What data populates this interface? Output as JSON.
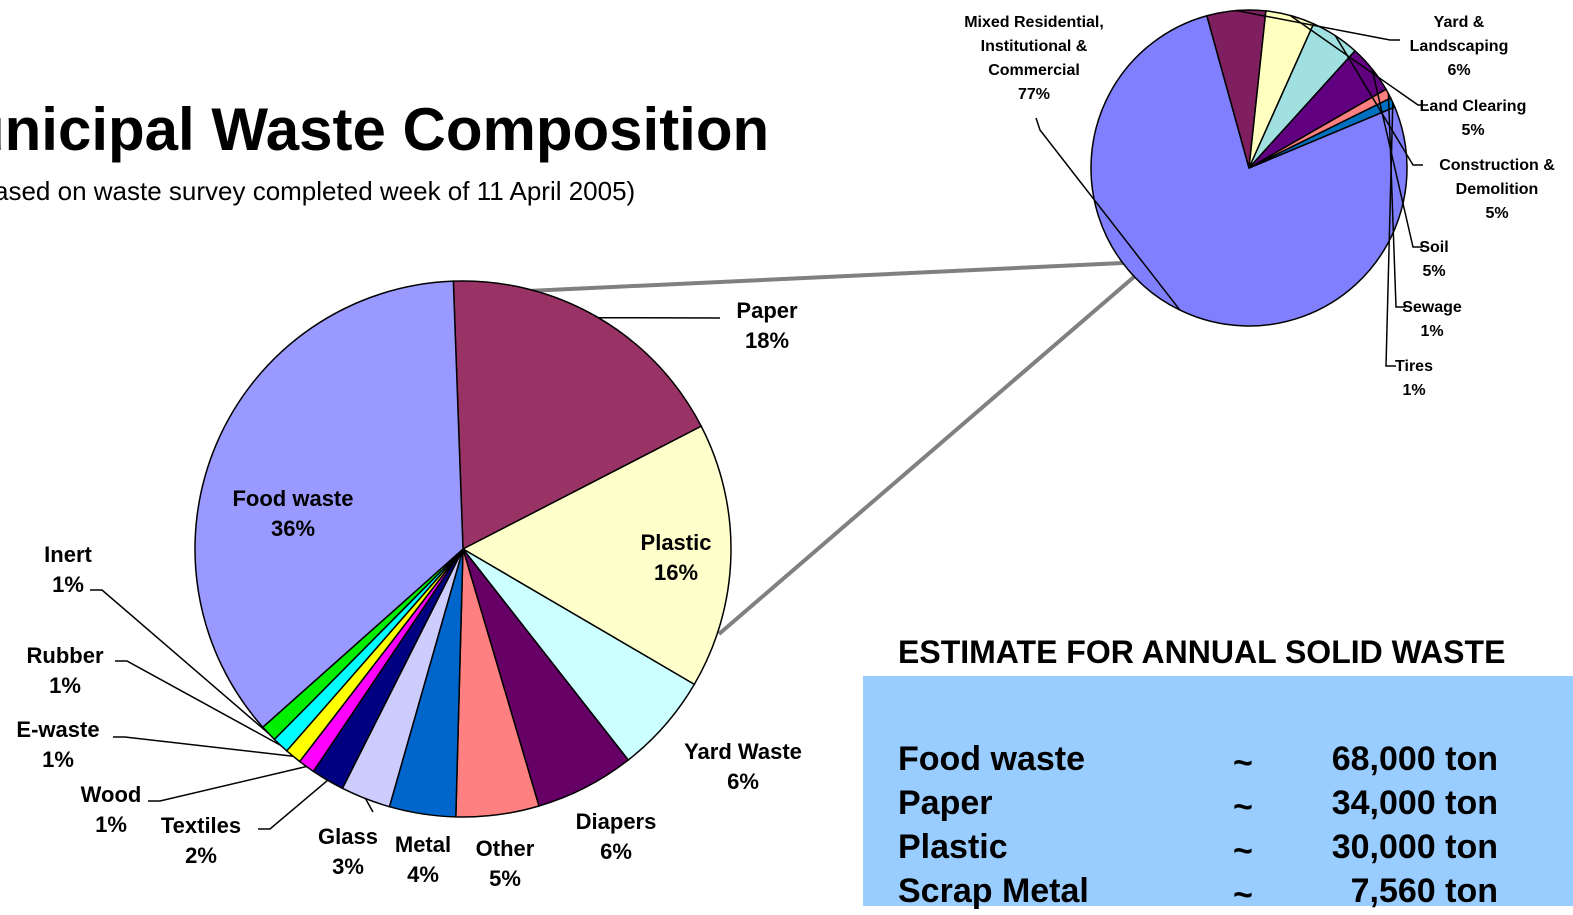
{
  "title": "unicipal Waste Composition",
  "subtitle": "ased on waste survey completed week of 11 April 2005)",
  "chart_data": [
    {
      "type": "pie",
      "slices": [
        {
          "label": "Paper",
          "value": 18,
          "pct": "18%",
          "color": "#993366"
        },
        {
          "label": "Plastic",
          "value": 16,
          "pct": "16%",
          "color": "#ffffcc"
        },
        {
          "label": "Yard Waste",
          "value": 6,
          "pct": "6%",
          "color": "#ccffff"
        },
        {
          "label": "Diapers",
          "value": 6,
          "pct": "6%",
          "color": "#660066"
        },
        {
          "label": "Other",
          "value": 5,
          "pct": "5%",
          "color": "#ff8080"
        },
        {
          "label": "Metal",
          "value": 4,
          "pct": "4%",
          "color": "#0066cc"
        },
        {
          "label": "Glass",
          "value": 3,
          "pct": "3%",
          "color": "#ccccff"
        },
        {
          "label": "Textiles",
          "value": 2,
          "pct": "2%",
          "color": "#000080"
        },
        {
          "label": "Wood",
          "value": 1,
          "pct": "1%",
          "color": "#ff00ff"
        },
        {
          "label": "E-waste",
          "value": 1,
          "pct": "1%",
          "color": "#ffff00"
        },
        {
          "label": "Rubber",
          "value": 1,
          "pct": "1%",
          "color": "#00ffff"
        },
        {
          "label": "Inert",
          "value": 1,
          "pct": "1%",
          "color": "#00ee00"
        },
        {
          "label": "Food waste",
          "value": 36,
          "pct": "36%",
          "color": "#9999ff"
        }
      ]
    },
    {
      "type": "pie",
      "slices": [
        {
          "label": "Mixed Residential, Institutional & Commercial",
          "label_lines": [
            "Mixed Residential,",
            "Institutional &",
            "Commercial"
          ],
          "value": 77,
          "pct": "77%",
          "color": "#8080ff"
        },
        {
          "label": "Yard & Landscaping",
          "label_lines": [
            "Yard &",
            "Landscaping"
          ],
          "value": 6,
          "pct": "6%",
          "color": "#7f1f5f"
        },
        {
          "label": "Land Clearing",
          "label_lines": [
            "Land Clearing"
          ],
          "value": 5,
          "pct": "5%",
          "color": "#ffffc0"
        },
        {
          "label": "Construction & Demolition",
          "label_lines": [
            "Construction &",
            "Demolition"
          ],
          "value": 5,
          "pct": "5%",
          "color": "#a0e0e0"
        },
        {
          "label": "Soil",
          "label_lines": [
            "Soil"
          ],
          "value": 5,
          "pct": "5%",
          "color": "#600080"
        },
        {
          "label": "Sewage",
          "label_lines": [
            "Sewage"
          ],
          "value": 1,
          "pct": "1%",
          "color": "#ff8080"
        },
        {
          "label": "Tires",
          "label_lines": [
            "Tires"
          ],
          "value": 1,
          "pct": "1%",
          "color": "#0070c0"
        }
      ]
    }
  ],
  "estimate": {
    "heading": "ESTIMATE FOR ANNUAL SOLID WASTE",
    "rows": [
      {
        "item": "Food waste",
        "tilde": "~",
        "amount": "68,000 ton"
      },
      {
        "item": "Paper",
        "tilde": "~",
        "amount": "34,000 ton"
      },
      {
        "item": "Plastic",
        "tilde": "~",
        "amount": "30,000 ton"
      },
      {
        "item": "Scrap Metal",
        "tilde": "~",
        "amount": "7,560 ton"
      }
    ]
  }
}
